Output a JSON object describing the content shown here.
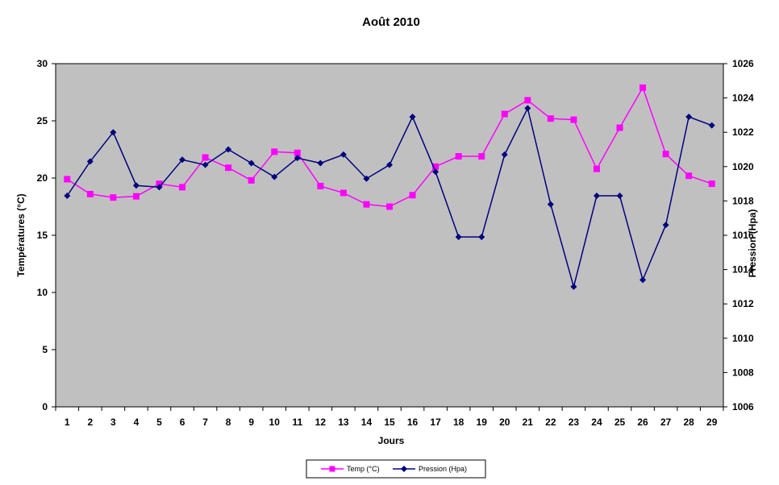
{
  "chart_data": {
    "type": "line",
    "title": "Août 2010",
    "xlabel": "Jours",
    "ylabel_left": "Températures (°C)",
    "ylabel_right": "Pression (Hpa)",
    "x": [
      1,
      2,
      3,
      4,
      5,
      6,
      7,
      8,
      9,
      10,
      11,
      12,
      13,
      14,
      15,
      16,
      17,
      18,
      19,
      20,
      21,
      22,
      23,
      24,
      25,
      26,
      27,
      28,
      29
    ],
    "y_left_lim": [
      0,
      30
    ],
    "y_left_ticks": [
      0,
      5,
      10,
      15,
      20,
      25,
      30
    ],
    "y_right_lim": [
      1006,
      1026
    ],
    "y_right_ticks": [
      1006,
      1008,
      1010,
      1012,
      1014,
      1016,
      1018,
      1020,
      1022,
      1024,
      1026
    ],
    "background_color": "#c0c0c0",
    "grid": false,
    "legend_position": "bottom",
    "series": [
      {
        "name": "Temp (°C)",
        "axis": "left",
        "color": "#ff00ff",
        "marker": "square",
        "values": [
          19.9,
          18.6,
          18.3,
          18.4,
          19.5,
          19.2,
          21.8,
          20.9,
          19.8,
          22.3,
          22.2,
          19.3,
          18.7,
          17.7,
          17.5,
          18.5,
          21.0,
          21.9,
          21.9,
          25.6,
          26.8,
          25.2,
          25.1,
          20.8,
          24.4,
          27.9,
          22.1,
          20.2,
          19.5
        ]
      },
      {
        "name": "Pression (Hpa)",
        "axis": "right",
        "color": "#000080",
        "marker": "diamond",
        "values": [
          1018.3,
          1020.3,
          1022.0,
          1018.9,
          1018.8,
          1020.4,
          1020.1,
          1021.0,
          1020.2,
          1019.4,
          1020.5,
          1020.2,
          1020.7,
          1019.3,
          1020.1,
          1022.9,
          1019.7,
          1015.9,
          1015.9,
          1020.7,
          1023.4,
          1017.8,
          1013.0,
          1018.3,
          1018.3,
          1013.4,
          1016.6,
          1022.9,
          1022.4
        ]
      }
    ]
  }
}
